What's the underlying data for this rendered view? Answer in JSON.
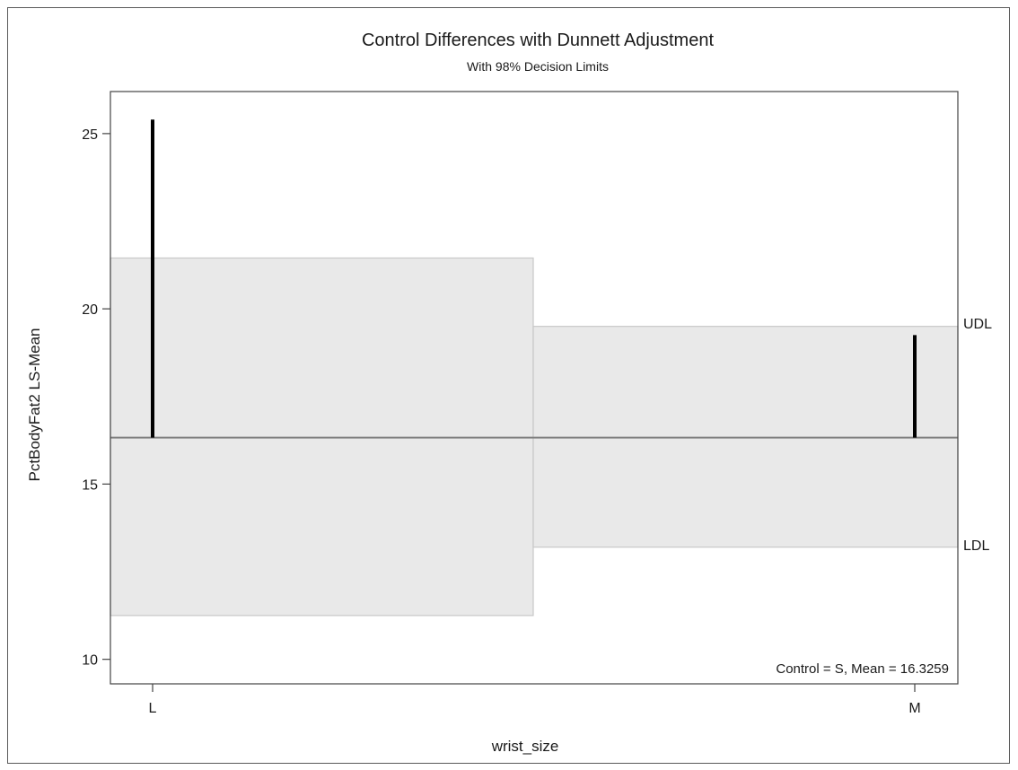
{
  "chart_data": {
    "type": "bar",
    "title": "Control Differences with Dunnett Adjustment",
    "subtitle": "With 98% Decision Limits",
    "xlabel": "wrist_size",
    "ylabel": "PctBodyFat2 LS-Mean",
    "categories": [
      "L",
      "M"
    ],
    "ylim": [
      9.3,
      26.2
    ],
    "yticks": [
      10,
      15,
      20,
      25
    ],
    "control_mean": 16.3259,
    "annotation": "Control = S, Mean = 16.3259",
    "series": [
      {
        "values": [
          25.4,
          19.25
        ]
      }
    ],
    "decision_limits": {
      "upper_label": "UDL",
      "lower_label": "LDL",
      "upper": [
        21.45,
        19.5
      ],
      "lower": [
        11.25,
        13.2
      ]
    },
    "grid": false,
    "colors": {
      "band_fill": "#e9e9e9",
      "band_edge": "#c8c8c8",
      "needle": "#000000",
      "reference_line": "#808080"
    }
  }
}
